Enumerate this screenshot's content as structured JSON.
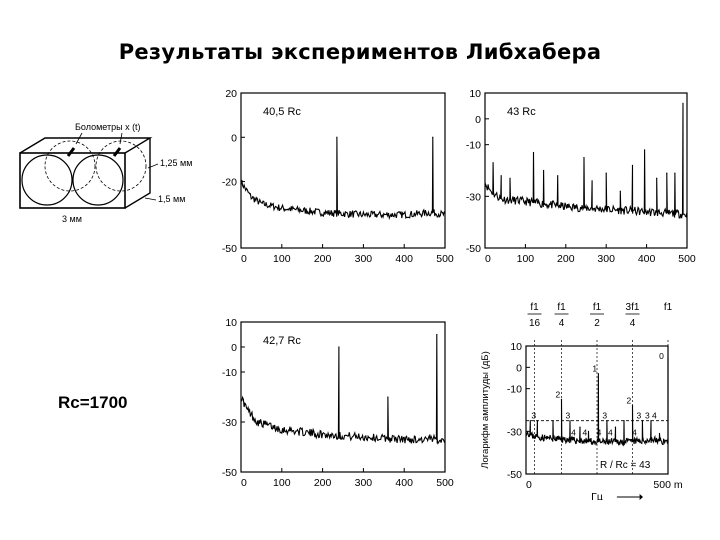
{
  "title": "Результаты экспериментов Либхабера",
  "rc_text": "Rc=1700",
  "diagram": {
    "bolometers_label": "Болометры  x (t)",
    "dim_125": "1,25 мм",
    "dim_15": "1,5 мм",
    "dim_3": "3 мм"
  },
  "colors": {
    "ink": "#000000",
    "background": "#ffffff"
  },
  "chart_data": [
    {
      "type": "line",
      "annotation": "40,5 Rc",
      "x_ticks": [
        "0",
        "100",
        "200",
        "300",
        "400",
        "500"
      ],
      "y_ticks": [
        "20",
        "0",
        "-20",
        "-50"
      ],
      "xlim": [
        0,
        500
      ],
      "ylim": [
        -50,
        20
      ],
      "baseline": [
        [
          0,
          -20
        ],
        [
          10,
          -23
        ],
        [
          25,
          -27
        ],
        [
          50,
          -30
        ],
        [
          100,
          -32
        ],
        [
          200,
          -34
        ],
        [
          300,
          -35
        ],
        [
          400,
          -35
        ],
        [
          470,
          -34
        ],
        [
          500,
          -35
        ]
      ],
      "peaks": [
        [
          235,
          0
        ],
        [
          470,
          0
        ]
      ]
    },
    {
      "type": "line",
      "annotation": "43 Rc",
      "x_ticks": [
        "0",
        "100",
        "200",
        "300",
        "400",
        "500"
      ],
      "y_ticks": [
        "10",
        "0",
        "-10",
        "-30",
        "-50"
      ],
      "xlim": [
        0,
        500
      ],
      "ylim": [
        -50,
        10
      ],
      "baseline": [
        [
          0,
          -25
        ],
        [
          15,
          -28
        ],
        [
          40,
          -31
        ],
        [
          100,
          -32
        ],
        [
          200,
          -34
        ],
        [
          300,
          -35
        ],
        [
          400,
          -36
        ],
        [
          500,
          -37
        ]
      ],
      "peaks": [
        [
          20,
          -17
        ],
        [
          40,
          -22
        ],
        [
          62,
          -23
        ],
        [
          120,
          -13
        ],
        [
          145,
          -20
        ],
        [
          180,
          -22
        ],
        [
          245,
          -15
        ],
        [
          265,
          -24
        ],
        [
          300,
          -21
        ],
        [
          335,
          -28
        ],
        [
          365,
          -18
        ],
        [
          395,
          -12
        ],
        [
          425,
          -23
        ],
        [
          450,
          -21
        ],
        [
          470,
          -21
        ],
        [
          490,
          6
        ]
      ]
    },
    {
      "type": "line",
      "annotation": "42,7 Rc",
      "x_ticks": [
        "0",
        "100",
        "200",
        "300",
        "400",
        "500"
      ],
      "y_ticks": [
        "10",
        "0",
        "-10",
        "-30",
        "-50"
      ],
      "xlim": [
        0,
        500
      ],
      "ylim": [
        -50,
        10
      ],
      "baseline": [
        [
          0,
          -20
        ],
        [
          15,
          -25
        ],
        [
          40,
          -30
        ],
        [
          100,
          -33
        ],
        [
          200,
          -35
        ],
        [
          300,
          -36
        ],
        [
          400,
          -37
        ],
        [
          500,
          -37
        ]
      ],
      "peaks": [
        [
          120,
          -32
        ],
        [
          240,
          0
        ],
        [
          360,
          -20
        ],
        [
          480,
          5
        ]
      ]
    },
    {
      "type": "line",
      "annotation": "R / Rc = 43",
      "ylabel": "Логарифм амплитуды (дБ)",
      "xlabel": "Гц",
      "x_ticks": [
        "0",
        "500 m"
      ],
      "y_ticks": [
        "10",
        "0",
        "-10",
        "-30",
        "-50"
      ],
      "xlim": [
        0,
        500
      ],
      "ylim": [
        -50,
        10
      ],
      "top_labels": [
        {
          "num": "f1",
          "den": "16",
          "x": 30
        },
        {
          "num": "f1",
          "den": "4",
          "x": 125
        },
        {
          "num": "f1",
          "den": "2",
          "x": 250
        },
        {
          "num": "3f1",
          "den": "4",
          "x": 375
        },
        {
          "num": "f1",
          "den": "",
          "x": 500
        }
      ],
      "baseline": [
        [
          0,
          -30
        ],
        [
          20,
          -32
        ],
        [
          60,
          -33
        ],
        [
          150,
          -34
        ],
        [
          250,
          -35
        ],
        [
          350,
          -35
        ],
        [
          450,
          -34
        ],
        [
          500,
          -35
        ]
      ],
      "peaks": [
        [
          15,
          -25
        ],
        [
          40,
          -25
        ],
        [
          95,
          -25
        ],
        [
          125,
          -15
        ],
        [
          155,
          -25
        ],
        [
          190,
          -28
        ],
        [
          220,
          -30
        ],
        [
          255,
          -3
        ],
        [
          285,
          -25
        ],
        [
          315,
          -28
        ],
        [
          345,
          -25
        ],
        [
          375,
          -18
        ],
        [
          410,
          -25
        ],
        [
          440,
          -25
        ],
        [
          470,
          -31
        ],
        [
          500,
          4
        ]
      ],
      "mode_labels": [
        {
          "text": "3",
          "x": 40,
          "y": -25
        },
        {
          "text": "2",
          "x": 125,
          "y": -15
        },
        {
          "text": "3",
          "x": 160,
          "y": -25
        },
        {
          "text": "4",
          "x": 180,
          "y": -33
        },
        {
          "text": "4",
          "x": 220,
          "y": -33
        },
        {
          "text": "1",
          "x": 255,
          "y": -3
        },
        {
          "text": "4",
          "x": 270,
          "y": -33
        },
        {
          "text": "3",
          "x": 290,
          "y": -25
        },
        {
          "text": "4",
          "x": 310,
          "y": -33
        },
        {
          "text": "2",
          "x": 375,
          "y": -18
        },
        {
          "text": "4",
          "x": 395,
          "y": -33
        },
        {
          "text": "3",
          "x": 410,
          "y": -25
        },
        {
          "text": "3",
          "x": 440,
          "y": -25
        },
        {
          "text": "4",
          "x": 465,
          "y": -25
        },
        {
          "text": "0",
          "x": 490,
          "y": 3
        }
      ]
    }
  ]
}
